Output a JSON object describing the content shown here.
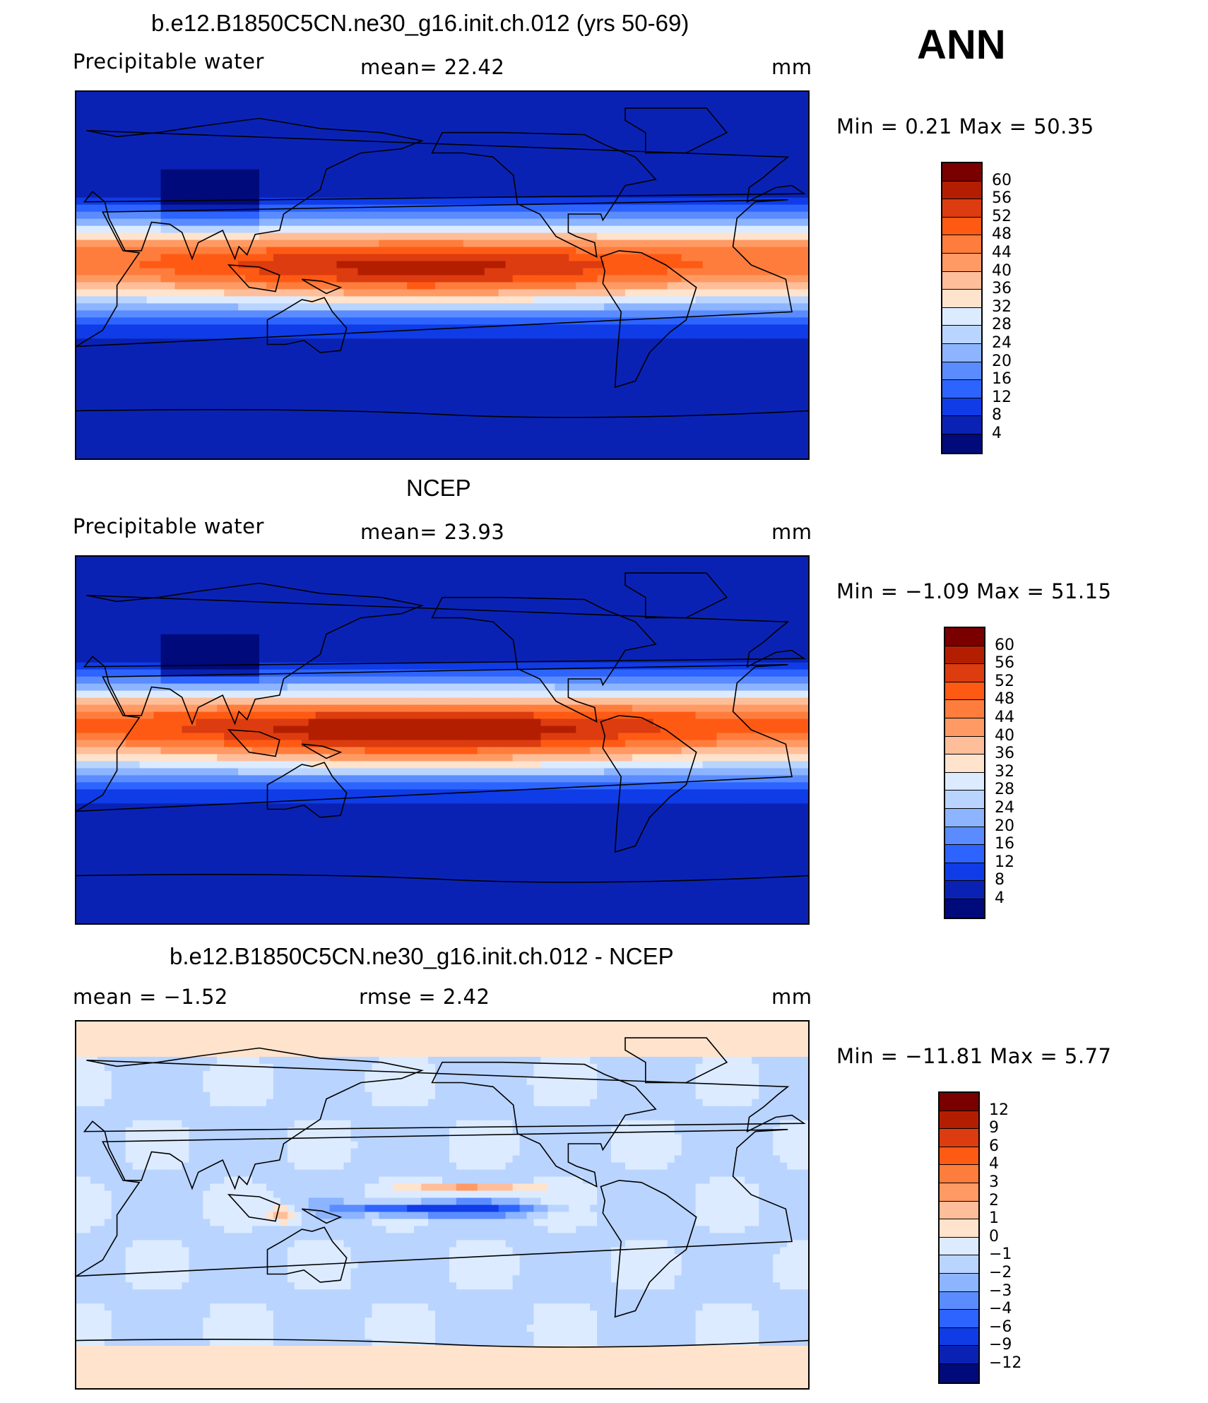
{
  "season": "ANN",
  "panels": [
    {
      "title": "b.e12.B1850C5CN.ne30_g16.init.ch.012 (yrs 50-69)",
      "left_label": "Precipitable  water",
      "mid_label": "mean=   22.42",
      "right_label": "mm",
      "minmax": "Min  =      0.21  Max  =    50.35",
      "kind": "field"
    },
    {
      "title": "NCEP",
      "left_label": "Precipitable  water",
      "mid_label": "mean=   23.93",
      "right_label": "mm",
      "minmax": "Min  =    −1.09  Max  =    51.15",
      "kind": "field"
    },
    {
      "title": "b.e12.B1850C5CN.ne30_g16.init.ch.012 - NCEP",
      "left_label": "mean  =    −1.52",
      "mid_label": "rmse  =     2.42",
      "right_label": "mm",
      "minmax": "Min  =  −11.81  Max  =     5.77",
      "kind": "diff"
    }
  ],
  "colorbar_field": {
    "levels": [
      "60",
      "56",
      "52",
      "48",
      "44",
      "40",
      "36",
      "32",
      "28",
      "24",
      "20",
      "16",
      "12",
      "8",
      "4"
    ],
    "colors": [
      "#7a0000",
      "#b41e00",
      "#dc3c0f",
      "#ff5a14",
      "#ff7d3c",
      "#ff9a64",
      "#ffbe9a",
      "#ffe3cc",
      "#dcebff",
      "#b9d4ff",
      "#8cb4ff",
      "#5a8cff",
      "#2d64ff",
      "#0f3ce6",
      "#0a22b4",
      "#000a7a"
    ]
  },
  "colorbar_diff": {
    "levels": [
      "12",
      "9",
      "6",
      "4",
      "3",
      "2",
      "1",
      "0",
      "−1",
      "−2",
      "−3",
      "−4",
      "−6",
      "−9",
      "−12"
    ],
    "colors": [
      "#7a0000",
      "#b41e00",
      "#dc3c0f",
      "#ff5a14",
      "#ff7d3c",
      "#ff9a64",
      "#ffbe9a",
      "#ffe3cc",
      "#dcebff",
      "#b9d4ff",
      "#8cb4ff",
      "#5a8cff",
      "#2d64ff",
      "#0f3ce6",
      "#0a22b4",
      "#000a7a"
    ]
  },
  "chart_data": [
    {
      "type": "heatmap",
      "title": "b.e12.B1850C5CN.ne30_g16.init.ch.012 (yrs 50-69)",
      "variable": "Precipitable water",
      "units": "mm",
      "mean": 22.42,
      "min": 0.21,
      "max": 50.35,
      "levels": [
        4,
        8,
        12,
        16,
        20,
        24,
        28,
        32,
        36,
        40,
        44,
        48,
        52,
        56,
        60
      ]
    },
    {
      "type": "heatmap",
      "title": "NCEP",
      "variable": "Precipitable water",
      "units": "mm",
      "mean": 23.93,
      "min": -1.09,
      "max": 51.15,
      "levels": [
        4,
        8,
        12,
        16,
        20,
        24,
        28,
        32,
        36,
        40,
        44,
        48,
        52,
        56,
        60
      ]
    },
    {
      "type": "heatmap",
      "title": "b.e12.B1850C5CN.ne30_g16.init.ch.012 - NCEP",
      "units": "mm",
      "mean": -1.52,
      "rmse": 2.42,
      "min": -11.81,
      "max": 5.77,
      "levels": [
        -12,
        -9,
        -6,
        -4,
        -3,
        -2,
        -1,
        0,
        1,
        2,
        3,
        4,
        6,
        9,
        12
      ]
    }
  ]
}
